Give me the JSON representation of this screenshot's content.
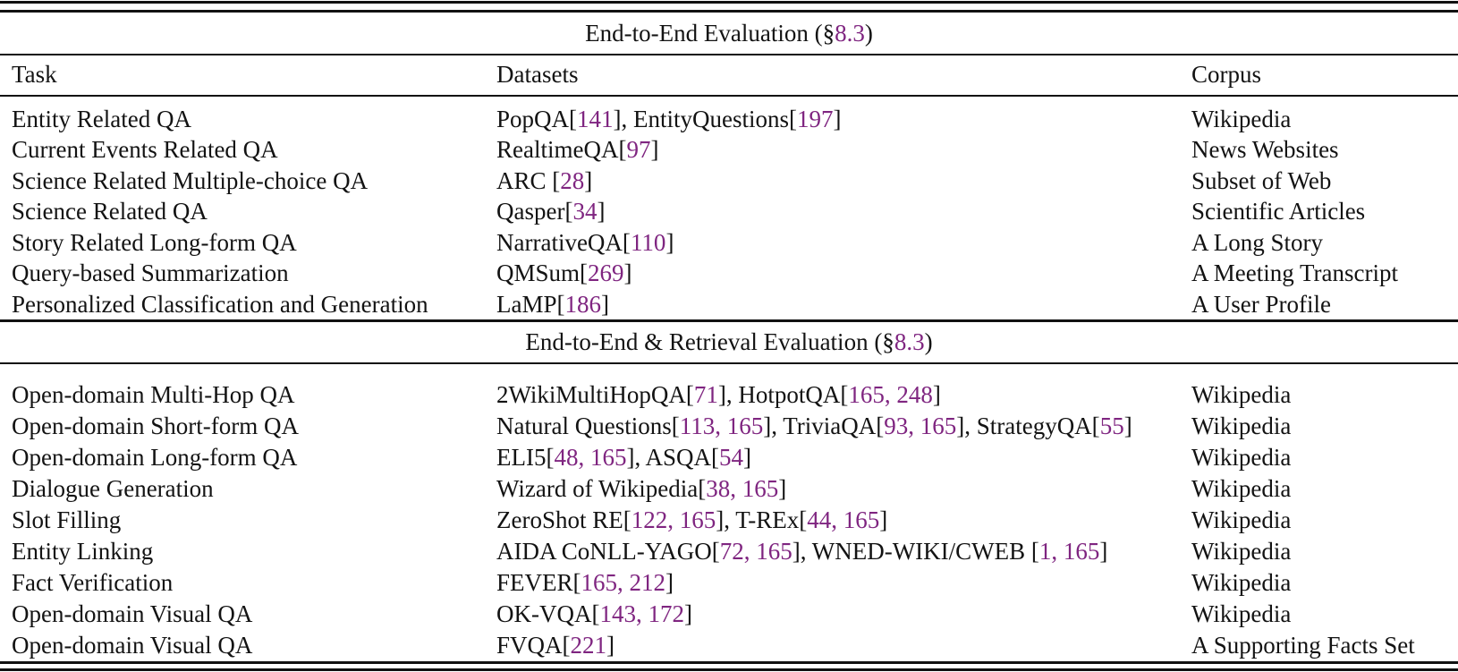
{
  "table": {
    "cite_color": "#7f2580",
    "col_headers": [
      "Task",
      "Datasets",
      "Corpus"
    ],
    "sections": [
      {
        "title_prefix": "End-to-End Evaluation (§",
        "title_ref": "8.3",
        "title_suffix": ")",
        "rows": [
          {
            "task": "Entity Related QA",
            "datasets": "PopQA[141], EntityQuestions[197]",
            "corpus": "Wikipedia"
          },
          {
            "task": "Current Events Related QA",
            "datasets": "RealtimeQA[97]",
            "corpus": "News Websites"
          },
          {
            "task": "Science Related Multiple-choice QA",
            "datasets": "ARC [28]",
            "corpus": "Subset of Web"
          },
          {
            "task": "Science Related QA",
            "datasets": "Qasper[34]",
            "corpus": "Scientific Articles"
          },
          {
            "task": "Story Related Long-form QA",
            "datasets": "NarrativeQA[110]",
            "corpus": "A Long Story"
          },
          {
            "task": "Query-based Summarization",
            "datasets": "QMSum[269]",
            "corpus": "A Meeting Transcript"
          },
          {
            "task": "Personalized Classification and Generation",
            "datasets": "LaMP[186]",
            "corpus": "A User Profile"
          }
        ]
      },
      {
        "title_prefix": "End-to-End & Retrieval Evaluation (§",
        "title_ref": "8.3",
        "title_suffix": ")",
        "rows": [
          {
            "task": "Open-domain Multi-Hop QA",
            "datasets": "2WikiMultiHopQA[71], HotpotQA[165, 248]",
            "corpus": "Wikipedia"
          },
          {
            "task": "Open-domain Short-form QA",
            "datasets": "Natural Questions[113, 165], TriviaQA[93, 165], StrategyQA[55]",
            "corpus": "Wikipedia"
          },
          {
            "task": "Open-domain Long-form QA",
            "datasets": "ELI5[48, 165], ASQA[54]",
            "corpus": "Wikipedia"
          },
          {
            "task": "Dialogue Generation",
            "datasets": "Wizard of Wikipedia[38, 165]",
            "corpus": "Wikipedia"
          },
          {
            "task": "Slot Filling",
            "datasets": "ZeroShot RE[122, 165], T-REx[44, 165]",
            "corpus": "Wikipedia"
          },
          {
            "task": "Entity Linking",
            "datasets": "AIDA CoNLL-YAGO[72, 165], WNED-WIKI/CWEB [1, 165]",
            "corpus": "Wikipedia"
          },
          {
            "task": "Fact Verification",
            "datasets": "FEVER[165, 212]",
            "corpus": "Wikipedia"
          },
          {
            "task": "Open-domain Visual QA",
            "datasets": "OK-VQA[143, 172]",
            "corpus": "Wikipedia"
          },
          {
            "task": "Open-domain Visual QA",
            "datasets": "FVQA[221]",
            "corpus": "A Supporting Facts Set"
          }
        ]
      }
    ]
  }
}
